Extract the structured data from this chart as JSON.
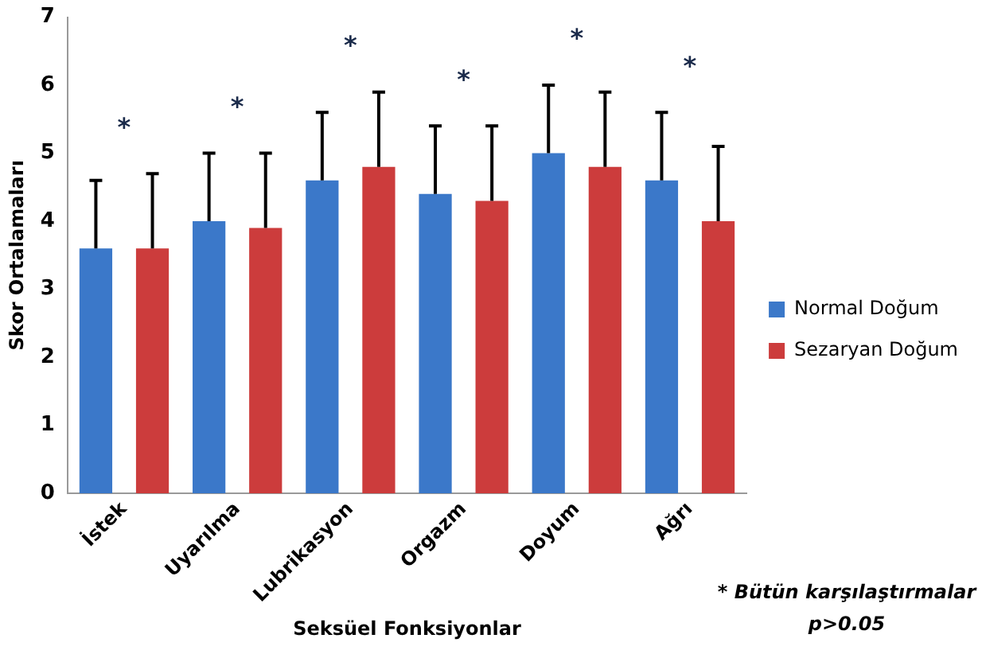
{
  "chart_data": {
    "type": "bar",
    "xlabel": "Seksüel Fonksiyonlar",
    "ylabel": "Skor Ortalamaları",
    "categories": [
      "İstek",
      "Uyarılma",
      "Lubrikasyon",
      "Orgazm",
      "Doyum",
      "Ağrı"
    ],
    "series": [
      {
        "name": "Normal Doğum",
        "color": "#3b78c9",
        "values": [
          3.6,
          4.0,
          4.6,
          4.4,
          5.0,
          4.6
        ],
        "errors": [
          [
            3.6,
            4.6
          ],
          [
            4.0,
            5.0
          ],
          [
            4.6,
            5.6
          ],
          [
            4.4,
            5.4
          ],
          [
            5.0,
            6.0
          ],
          [
            4.6,
            5.6
          ]
        ]
      },
      {
        "name": "Sezaryan Doğum",
        "color": "#cc3c3c",
        "values": [
          3.6,
          3.9,
          4.8,
          4.3,
          4.8,
          4.0
        ],
        "errors": [
          [
            3.6,
            4.7
          ],
          [
            3.9,
            5.0
          ],
          [
            4.8,
            5.9
          ],
          [
            4.3,
            5.4
          ],
          [
            4.8,
            5.9
          ],
          [
            4.0,
            5.1
          ]
        ]
      }
    ],
    "ylim": [
      0,
      7
    ],
    "yticks": [
      0,
      1,
      2,
      3,
      4,
      5,
      6,
      7
    ],
    "grid": false,
    "legend": "right",
    "annotations": [
      "*",
      "*",
      "*",
      "*",
      "*",
      "*",
      "* Bütün karşılaştırmalar p>0.05"
    ]
  }
}
